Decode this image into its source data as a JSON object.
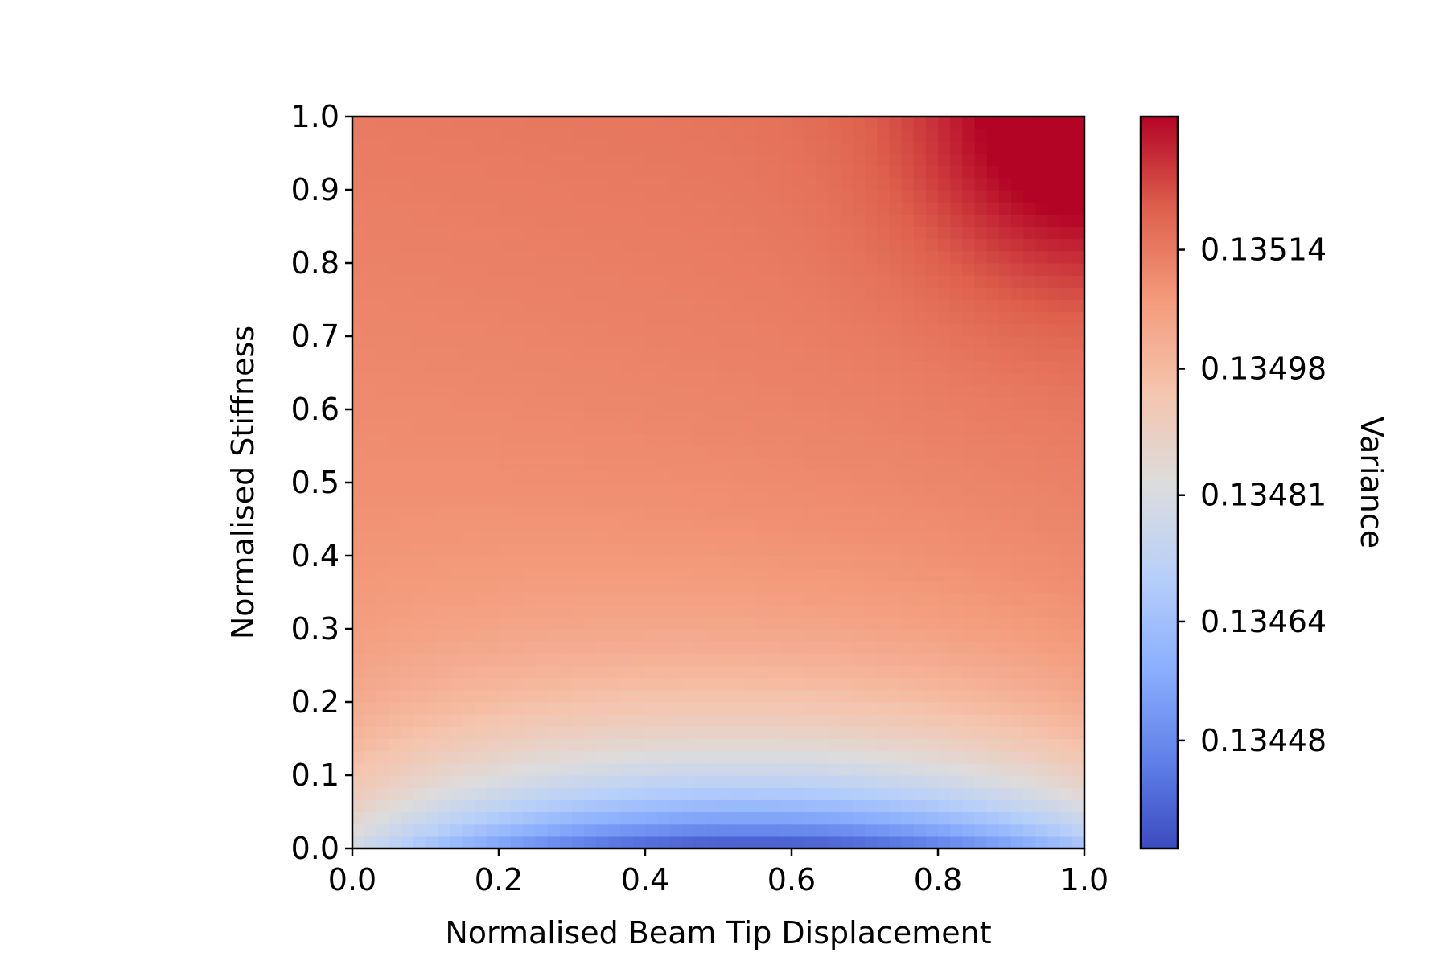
{
  "chart_data": {
    "type": "heatmap",
    "title": "",
    "xlabel": "Normalised Beam Tip Displacement",
    "ylabel": "Normalised Stiffness",
    "colorbar_label": "Variance",
    "colormap": "coolwarm",
    "xlim": [
      0.0,
      1.0
    ],
    "ylim": [
      0.0,
      1.0
    ],
    "x_ticks": [
      "0.0",
      "0.2",
      "0.4",
      "0.6",
      "0.8",
      "1.0"
    ],
    "y_ticks": [
      "0.0",
      "0.1",
      "0.2",
      "0.3",
      "0.4",
      "0.5",
      "0.6",
      "0.7",
      "0.8",
      "0.9",
      "1.0"
    ],
    "colorbar_range": [
      0.134335,
      0.135319
    ],
    "colorbar_ticks": [
      {
        "value": 0.13448,
        "label": "0.13448"
      },
      {
        "value": 0.13464,
        "label": "0.13464"
      },
      {
        "value": 0.13481,
        "label": "0.13481"
      },
      {
        "value": 0.13498,
        "label": "0.13498"
      },
      {
        "value": 0.13514,
        "label": "0.13514"
      }
    ],
    "grid_resolution": [
      60,
      60
    ],
    "field_description": "variance is lowest (~0.13434) near x=0.55,y=0.0, rises with stiffness to ~0.1351 above y=0.7 and peaks (~0.13532) at the top-right corner",
    "grid": false,
    "legend": "none"
  }
}
